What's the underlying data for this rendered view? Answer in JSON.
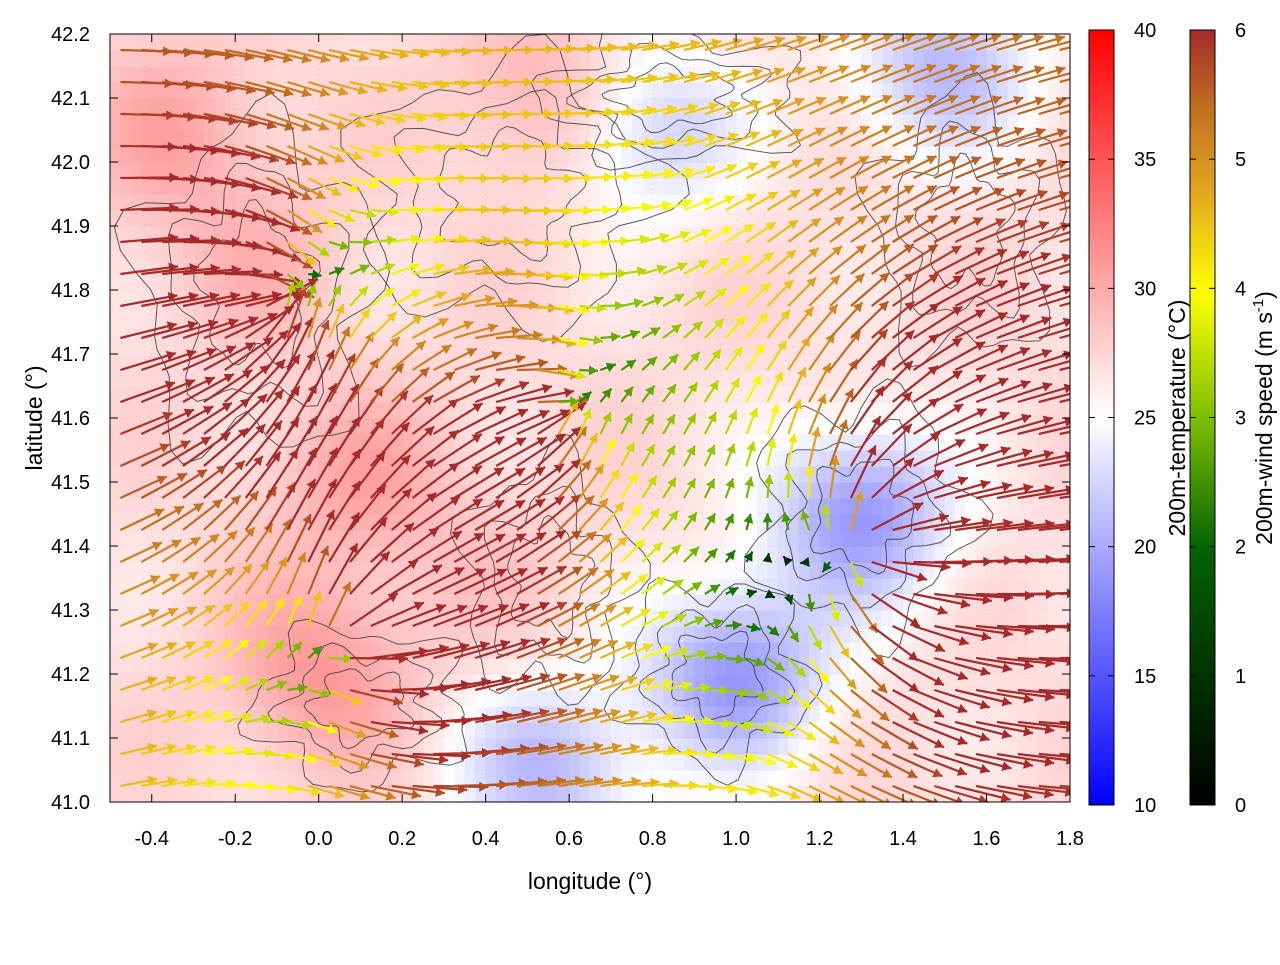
{
  "chart_data": {
    "type": "heatmap",
    "subtype": "vector-field-over-scalar-field",
    "xlabel": "longitude (°)",
    "ylabel": "latitude (°)",
    "xlim": [
      -0.5,
      1.8
    ],
    "ylim": [
      41.0,
      42.2
    ],
    "xticks": [
      -0.4,
      -0.2,
      0.0,
      0.2,
      0.4,
      0.6,
      0.8,
      1.0,
      1.2,
      1.4,
      1.6,
      1.8
    ],
    "xtick_labels": [
      "-0.4",
      "-0.2",
      "0.0",
      "0.2",
      "0.4",
      "0.6",
      "0.8",
      "1.0",
      "1.2",
      "1.4",
      "1.6",
      "1.8"
    ],
    "yticks": [
      41.0,
      41.1,
      41.2,
      41.3,
      41.4,
      41.5,
      41.6,
      41.7,
      41.8,
      41.9,
      42.0,
      42.1,
      42.2
    ],
    "ytick_labels": [
      "41.0",
      "41.1",
      "41.2",
      "41.3",
      "41.4",
      "41.5",
      "41.6",
      "41.7",
      "41.8",
      "41.9",
      "42.0",
      "42.1",
      "42.2"
    ],
    "temperature_colorbar": {
      "label": "200m-temperature (°C)",
      "range": [
        10,
        40
      ],
      "ticks": [
        10,
        15,
        20,
        25,
        30,
        35,
        40
      ],
      "tick_labels": [
        "10",
        "15",
        "20",
        "25",
        "30",
        "35",
        "40"
      ],
      "colors": [
        "#0000ff",
        "#ffffff",
        "#ff0000"
      ]
    },
    "wind_colorbar": {
      "label": "200m-wind speed (m s",
      "label_superscript": "-1",
      "label_suffix": ")",
      "range": [
        0,
        6
      ],
      "ticks": [
        0,
        1,
        2,
        3,
        4,
        5,
        6
      ],
      "tick_labels": [
        "0",
        "1",
        "2",
        "3",
        "4",
        "5",
        "6"
      ],
      "colors": [
        "#000000",
        "#006400",
        "#7fbf00",
        "#ffff00",
        "#e0a020",
        "#c07020",
        "#a52a2a"
      ]
    },
    "temperature_field": {
      "grid_lon_step": 0.1,
      "grid_lat_step": 0.1,
      "hot_spots": [
        {
          "lon": -0.15,
          "lat": 41.85,
          "t": 29
        },
        {
          "lon": 0.1,
          "lat": 41.5,
          "t": 30
        },
        {
          "lon": 0.0,
          "lat": 41.2,
          "t": 31
        },
        {
          "lon": 0.55,
          "lat": 42.1,
          "t": 30
        },
        {
          "lon": 0.4,
          "lat": 41.35,
          "t": 28
        },
        {
          "lon": -0.35,
          "lat": 42.05,
          "t": 30
        }
      ],
      "cold_spots": [
        {
          "lon": 1.3,
          "lat": 41.45,
          "t": 19
        },
        {
          "lon": 1.0,
          "lat": 41.2,
          "t": 19
        },
        {
          "lon": 0.55,
          "lat": 41.05,
          "t": 21
        },
        {
          "lon": 1.5,
          "lat": 42.15,
          "t": 21
        },
        {
          "lon": 0.8,
          "lat": 42.05,
          "t": 22
        }
      ],
      "background_t": 27
    },
    "wind_field": {
      "vector_spacing_deg": 0.05,
      "convergence_centers": [
        {
          "lon": -0.12,
          "lat": 41.78,
          "strength": 1.0
        },
        {
          "lon": 0.55,
          "lat": 41.6,
          "strength": 0.6
        }
      ],
      "divergence_centers": [
        {
          "lon": 1.3,
          "lat": 41.4,
          "strength": 1.0
        },
        {
          "lon": 0.05,
          "lat": 41.25,
          "strength": 0.7
        }
      ],
      "background_flow": {
        "u": 4.5,
        "v": 0.6
      },
      "max_speed": 6
    }
  }
}
